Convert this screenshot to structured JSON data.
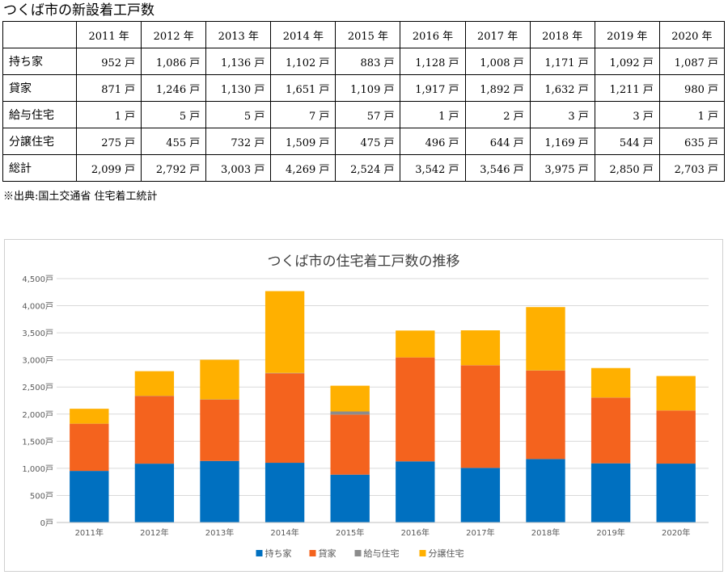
{
  "table": {
    "title": "つくば市の新設着工戸数",
    "corner": "",
    "columns": [
      "2011 年",
      "2012 年",
      "2013 年",
      "2014 年",
      "2015 年",
      "2016 年",
      "2017 年",
      "2018 年",
      "2019 年",
      "2020 年"
    ],
    "rows": [
      {
        "label": "持ち家",
        "cells": [
          "952 戸",
          "1,086 戸",
          "1,136 戸",
          "1,102 戸",
          "883 戸",
          "1,128 戸",
          "1,008 戸",
          "1,171 戸",
          "1,092 戸",
          "1,087 戸"
        ]
      },
      {
        "label": "貸家",
        "cells": [
          "871 戸",
          "1,246 戸",
          "1,130 戸",
          "1,651 戸",
          "1,109 戸",
          "1,917 戸",
          "1,892 戸",
          "1,632 戸",
          "1,211 戸",
          "980 戸"
        ]
      },
      {
        "label": "給与住宅",
        "cells": [
          "1 戸",
          "5 戸",
          "5 戸",
          "7 戸",
          "57 戸",
          "1 戸",
          "2 戸",
          "3 戸",
          "3 戸",
          "1 戸"
        ]
      },
      {
        "label": "分譲住宅",
        "cells": [
          "275 戸",
          "455 戸",
          "732 戸",
          "1,509 戸",
          "475 戸",
          "496 戸",
          "644 戸",
          "1,169 戸",
          "544 戸",
          "635 戸"
        ]
      },
      {
        "label": "総計",
        "cells": [
          "2,099 戸",
          "2,792 戸",
          "3,003 戸",
          "4,269 戸",
          "2,524 戸",
          "3,542 戸",
          "3,546 戸",
          "3,975 戸",
          "2,850 戸",
          "2,703 戸"
        ]
      }
    ],
    "source": "※出典:国土交通省 住宅着工統計"
  },
  "chart_data": {
    "type": "bar",
    "stacked": true,
    "title": "つくば市の住宅着工戸数の推移",
    "categories": [
      "2011年",
      "2012年",
      "2013年",
      "2014年",
      "2015年",
      "2016年",
      "2017年",
      "2018年",
      "2019年",
      "2020年"
    ],
    "series": [
      {
        "name": "持ち家",
        "color": "#0070c0",
        "values": [
          952,
          1086,
          1136,
          1102,
          883,
          1128,
          1008,
          1171,
          1092,
          1087
        ]
      },
      {
        "name": "貸家",
        "color": "#f4631e",
        "values": [
          871,
          1246,
          1130,
          1651,
          1109,
          1917,
          1892,
          1632,
          1211,
          980
        ]
      },
      {
        "name": "給与住宅",
        "color": "#8c8c8c",
        "values": [
          1,
          5,
          5,
          7,
          57,
          1,
          2,
          3,
          3,
          1
        ]
      },
      {
        "name": "分譲住宅",
        "color": "#ffb000",
        "values": [
          275,
          455,
          732,
          1509,
          475,
          496,
          644,
          1169,
          544,
          635
        ]
      }
    ],
    "ylim": [
      0,
      4500
    ],
    "yticks": [
      0,
      500,
      1000,
      1500,
      2000,
      2500,
      3000,
      3500,
      4000,
      4500
    ],
    "ytick_labels": [
      "0戸",
      "500戸",
      "1,000戸",
      "1,500戸",
      "2,000戸",
      "2,500戸",
      "3,000戸",
      "3,500戸",
      "4,000戸",
      "4,500戸"
    ],
    "grid": true,
    "legend_position": "bottom"
  }
}
